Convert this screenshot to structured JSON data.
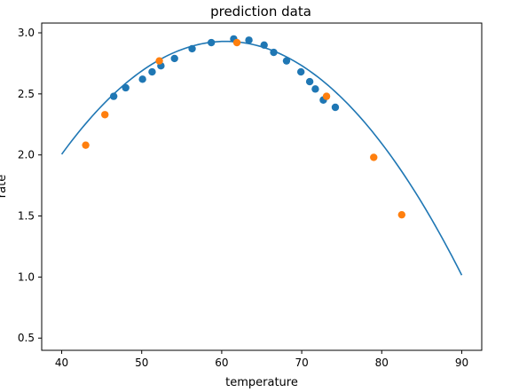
{
  "chart_data": {
    "type": "scatter",
    "title": "prediction data",
    "xlabel": "temperature",
    "ylabel": "rate",
    "xlim": [
      37.5,
      92.5
    ],
    "ylim": [
      0.4,
      3.08
    ],
    "xticks": [
      40,
      50,
      60,
      70,
      80,
      90
    ],
    "yticks": [
      0.5,
      1.0,
      1.5,
      2.0,
      2.5,
      3.0
    ],
    "ytick_labels": [
      "0.5",
      "1.0",
      "1.5",
      "2.0",
      "2.5",
      "3.0"
    ],
    "grid": false,
    "series": [
      {
        "kind": "scatter",
        "color": "#1f77b4",
        "x": [
          46.5,
          48.0,
          50.1,
          51.3,
          52.4,
          54.1,
          56.3,
          58.7,
          61.5,
          63.4,
          65.3,
          66.5,
          68.1,
          69.9,
          71.0,
          71.7,
          72.7,
          74.2
        ],
        "y": [
          2.48,
          2.55,
          2.62,
          2.68,
          2.73,
          2.79,
          2.87,
          2.92,
          2.95,
          2.94,
          2.9,
          2.84,
          2.77,
          2.68,
          2.6,
          2.54,
          2.45,
          2.39
        ]
      },
      {
        "kind": "scatter",
        "color": "#ff7f0e",
        "x": [
          43.0,
          45.4,
          52.2,
          61.9,
          73.1,
          79.0,
          82.5
        ],
        "y": [
          2.08,
          2.33,
          2.77,
          2.92,
          2.48,
          1.98,
          1.51
        ]
      },
      {
        "kind": "line",
        "color": "#1f77b4",
        "fit": {
          "a": -0.0022,
          "h": 60.5,
          "k": 2.93
        },
        "x_range": [
          40,
          90
        ]
      }
    ]
  }
}
